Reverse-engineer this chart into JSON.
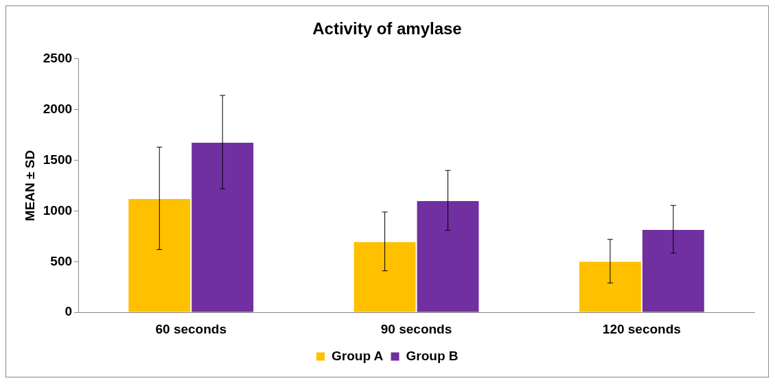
{
  "chart_data": {
    "type": "bar",
    "title": "Activity of amylase",
    "ylabel": "MEAN ± SD",
    "categories": [
      "60 seconds",
      "90 seconds",
      "120 seconds"
    ],
    "series": [
      {
        "name": "Group A",
        "color": "#ffc000",
        "values": [
          1125,
          700,
          505
        ],
        "errors": [
          505,
          290,
          215
        ]
      },
      {
        "name": "Group B",
        "color": "#7030a0",
        "values": [
          1680,
          1105,
          820
        ],
        "errors": [
          460,
          295,
          235
        ]
      }
    ],
    "ylim": [
      0,
      2500
    ],
    "yticks": [
      0,
      500,
      1000,
      1500,
      2000,
      2500
    ],
    "grid": false,
    "legend": "bottom"
  }
}
